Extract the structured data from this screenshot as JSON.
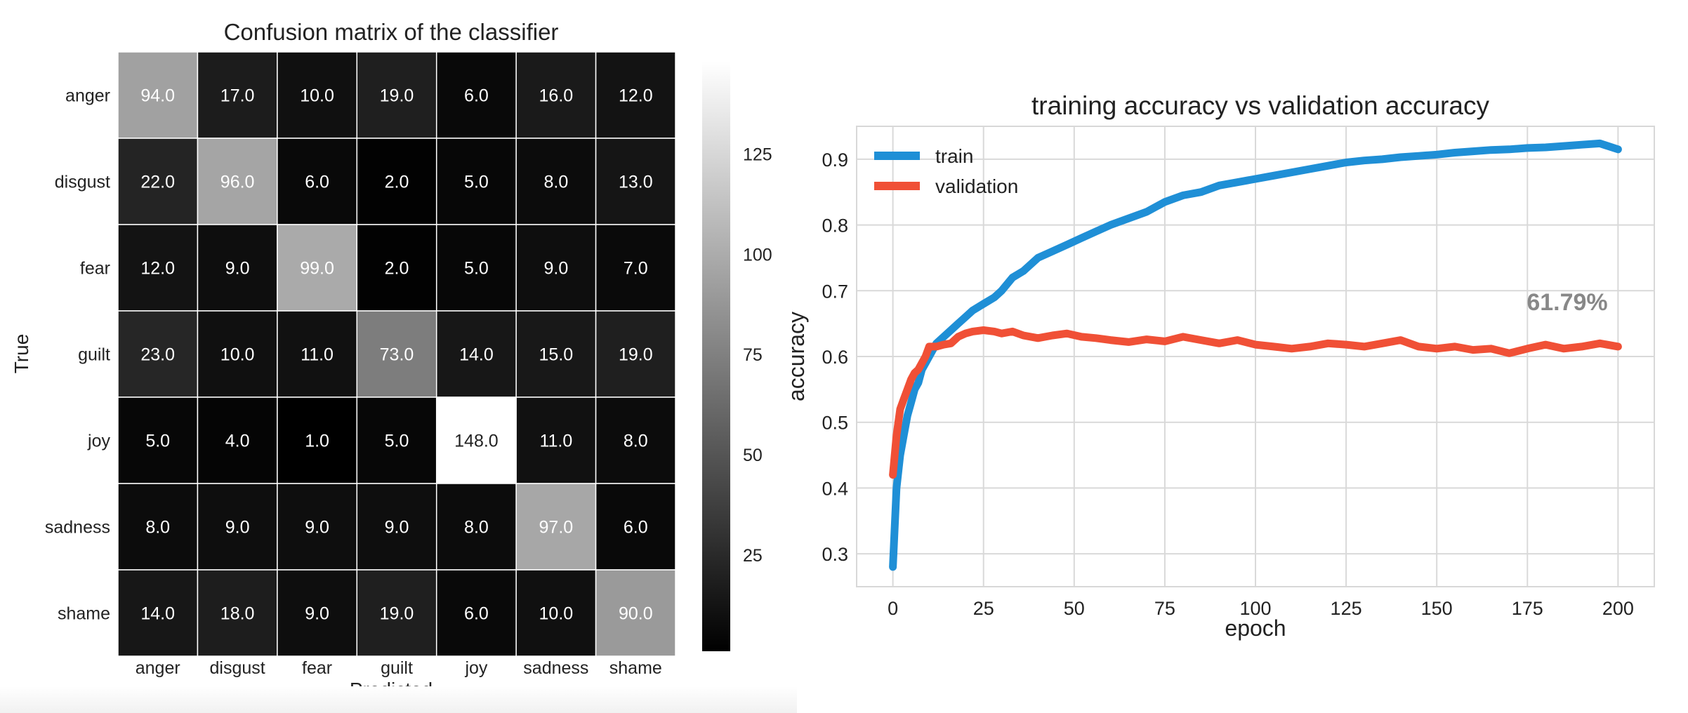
{
  "chart_data": [
    {
      "type": "heatmap",
      "title": "Confusion matrix of the classifier",
      "xlabel": "Predicted",
      "ylabel": "True",
      "x_categories": [
        "anger",
        "disgust",
        "fear",
        "guilt",
        "joy",
        "sadness",
        "shame"
      ],
      "y_categories": [
        "anger",
        "disgust",
        "fear",
        "guilt",
        "joy",
        "sadness",
        "shame"
      ],
      "values": [
        [
          94.0,
          17.0,
          10.0,
          19.0,
          6.0,
          16.0,
          12.0
        ],
        [
          22.0,
          96.0,
          6.0,
          2.0,
          5.0,
          8.0,
          13.0
        ],
        [
          12.0,
          9.0,
          99.0,
          2.0,
          5.0,
          9.0,
          7.0
        ],
        [
          23.0,
          10.0,
          11.0,
          73.0,
          14.0,
          15.0,
          19.0
        ],
        [
          5.0,
          4.0,
          1.0,
          5.0,
          148.0,
          11.0,
          8.0
        ],
        [
          8.0,
          9.0,
          9.0,
          9.0,
          8.0,
          97.0,
          6.0
        ],
        [
          14.0,
          18.0,
          9.0,
          19.0,
          6.0,
          10.0,
          90.0
        ]
      ],
      "colormap": "gray",
      "colorbar_range": [
        1,
        148
      ],
      "colorbar_ticks": [
        25,
        50,
        75,
        100,
        125
      ]
    },
    {
      "type": "line",
      "title": "training accuracy vs validation accuracy",
      "xlabel": "epoch",
      "ylabel": "accuracy",
      "xlim": [
        -10,
        210
      ],
      "ylim": [
        0.25,
        0.95
      ],
      "xticks": [
        0,
        25,
        50,
        75,
        100,
        125,
        150,
        175,
        200
      ],
      "yticks": [
        0.3,
        0.4,
        0.5,
        0.6,
        0.7,
        0.8,
        0.9
      ],
      "grid": true,
      "legend_position": "top-left",
      "annotation": "61.79%",
      "series": [
        {
          "name": "train",
          "color": "#1f8fd6",
          "x": [
            0,
            1,
            2,
            3,
            4,
            5,
            6,
            7,
            8,
            9,
            10,
            12,
            14,
            16,
            18,
            20,
            22,
            25,
            28,
            30,
            33,
            36,
            40,
            44,
            48,
            52,
            56,
            60,
            65,
            70,
            75,
            80,
            85,
            90,
            95,
            100,
            105,
            110,
            115,
            120,
            125,
            130,
            135,
            140,
            145,
            150,
            155,
            160,
            165,
            170,
            175,
            180,
            185,
            190,
            195,
            200
          ],
          "y": [
            0.28,
            0.4,
            0.45,
            0.48,
            0.51,
            0.53,
            0.55,
            0.56,
            0.58,
            0.59,
            0.6,
            0.62,
            0.63,
            0.64,
            0.65,
            0.66,
            0.67,
            0.68,
            0.69,
            0.7,
            0.72,
            0.73,
            0.75,
            0.76,
            0.77,
            0.78,
            0.79,
            0.8,
            0.81,
            0.82,
            0.835,
            0.845,
            0.85,
            0.86,
            0.865,
            0.87,
            0.875,
            0.88,
            0.885,
            0.89,
            0.895,
            0.898,
            0.9,
            0.903,
            0.905,
            0.907,
            0.91,
            0.912,
            0.914,
            0.915,
            0.917,
            0.918,
            0.92,
            0.922,
            0.924,
            0.915
          ]
        },
        {
          "name": "validation",
          "color": "#f05036",
          "x": [
            0,
            1,
            2,
            3,
            4,
            5,
            6,
            7,
            8,
            9,
            10,
            12,
            14,
            16,
            18,
            20,
            22,
            25,
            28,
            30,
            33,
            36,
            40,
            44,
            48,
            52,
            56,
            60,
            65,
            70,
            75,
            80,
            85,
            90,
            95,
            100,
            105,
            110,
            115,
            120,
            125,
            130,
            135,
            140,
            145,
            150,
            155,
            160,
            165,
            170,
            175,
            180,
            185,
            190,
            195,
            200
          ],
          "y": [
            0.42,
            0.48,
            0.52,
            0.535,
            0.55,
            0.565,
            0.575,
            0.58,
            0.59,
            0.6,
            0.615,
            0.615,
            0.618,
            0.62,
            0.63,
            0.635,
            0.638,
            0.64,
            0.638,
            0.635,
            0.638,
            0.632,
            0.628,
            0.632,
            0.635,
            0.63,
            0.628,
            0.625,
            0.622,
            0.626,
            0.623,
            0.63,
            0.625,
            0.62,
            0.625,
            0.618,
            0.615,
            0.612,
            0.615,
            0.62,
            0.618,
            0.615,
            0.62,
            0.625,
            0.615,
            0.612,
            0.615,
            0.61,
            0.612,
            0.605,
            0.612,
            0.618,
            0.612,
            0.615,
            0.62,
            0.615
          ]
        }
      ]
    }
  ]
}
